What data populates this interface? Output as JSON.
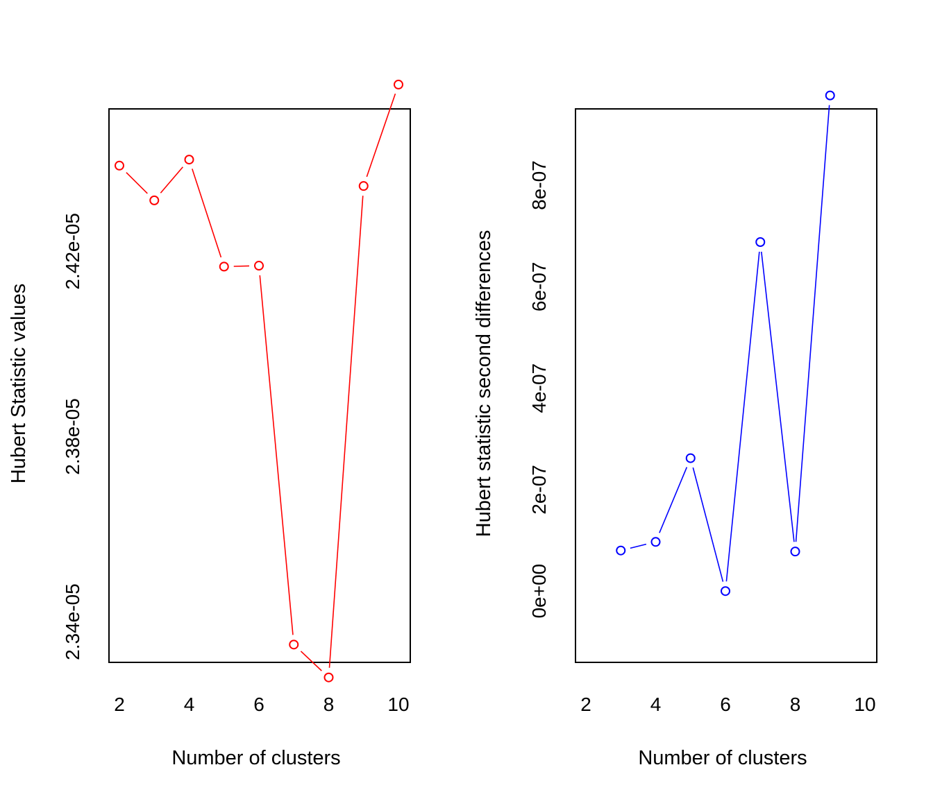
{
  "chart_data": [
    {
      "type": "line",
      "xlabel": "Number of clusters",
      "ylabel": "Hubert Statistic values",
      "xlim": [
        2,
        10
      ],
      "ylim": [
        2.3335e-05,
        2.4485e-05
      ],
      "xticks": [
        "2",
        "4",
        "6",
        "8",
        "10"
      ],
      "yticks": [
        "2.34e-05",
        "2.38e-05",
        "2.42e-05"
      ],
      "color": "#ff0000",
      "markers": "open-circle",
      "series": [
        {
          "x": [
            2,
            3,
            4,
            5,
            6,
            7,
            8,
            9,
            10
          ],
          "values": [
            2.4385e-05,
            2.431e-05,
            2.4398e-05,
            2.4167e-05,
            2.4169e-05,
            2.3351e-05,
            2.328e-05,
            2.4341e-05,
            2.456e-05
          ]
        }
      ]
    },
    {
      "type": "line",
      "xlabel": "Number of clusters",
      "ylabel": "Hubert statistic second differences",
      "xlim": [
        2,
        10
      ],
      "ylim": [
        -1.2e-07,
        9.3e-07
      ],
      "xticks": [
        "2",
        "4",
        "6",
        "8",
        "10"
      ],
      "yticks": [
        "0e+00",
        "2e-07",
        "4e-07",
        "6e-07",
        "8e-07"
      ],
      "color": "#0000ff",
      "markers": "open-circle",
      "series": [
        {
          "x": [
            3,
            4,
            5,
            6,
            7,
            8,
            9
          ],
          "values": [
            8e-08,
            9.7e-08,
            2.62e-07,
            0.0,
            6.88e-07,
            7.8e-08,
            9.77e-07
          ]
        }
      ]
    }
  ]
}
